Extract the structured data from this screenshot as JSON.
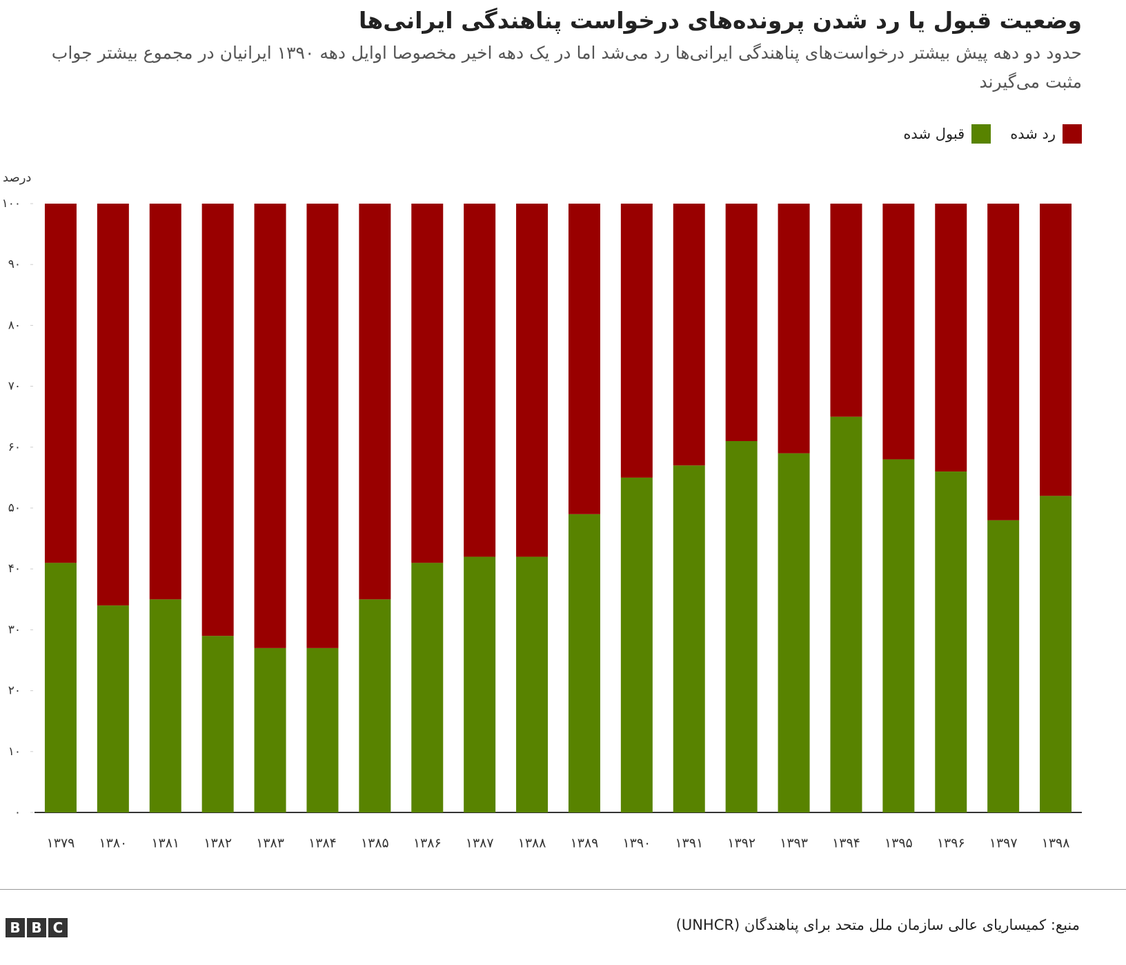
{
  "chart_data": {
    "type": "stacked_bar",
    "title": "وضعیت قبول یا رد شدن پرونده‌های درخواست پناهندگی ایرانی‌ها",
    "subtitle": "حدود دو دهه پیش بیشتر درخواست‌های پناهندگی ایرانی‌ها رد می‌شد اما در یک دهه اخیر مخصوصا اوایل دهه ۱۳۹۰ ایرانیان در مجموع بیشتر جواب مثبت می‌گیرند",
    "y_label": "درصد",
    "categories": [
      "۱۳۷۹",
      "۱۳۸۰",
      "۱۳۸۱",
      "۱۳۸۲",
      "۱۳۸۳",
      "۱۳۸۴",
      "۱۳۸۵",
      "۱۳۸۶",
      "۱۳۸۷",
      "۱۳۸۸",
      "۱۳۸۹",
      "۱۳۹۰",
      "۱۳۹۱",
      "۱۳۹۲",
      "۱۳۹۳",
      "۱۳۹۴",
      "۱۳۹۵",
      "۱۳۹۶",
      "۱۳۹۷",
      "۱۳۹۸"
    ],
    "series": [
      {
        "name": "قبول شده",
        "color": "#588300",
        "values": [
          41,
          34,
          35,
          29,
          27,
          27,
          35,
          41,
          42,
          42,
          49,
          55,
          57,
          61,
          59,
          65,
          58,
          56,
          48,
          52
        ]
      },
      {
        "name": "رد شده",
        "color": "#990000",
        "values": [
          59,
          66,
          65,
          71,
          73,
          73,
          65,
          59,
          58,
          58,
          51,
          45,
          43,
          39,
          41,
          35,
          42,
          44,
          52,
          48
        ]
      }
    ],
    "ylim": [
      0,
      100
    ],
    "yticks": [
      {
        "value": 0,
        "label": "۰"
      },
      {
        "value": 10,
        "label": "۱۰"
      },
      {
        "value": 20,
        "label": "۲۰"
      },
      {
        "value": 30,
        "label": "۳۰"
      },
      {
        "value": 40,
        "label": "۴۰"
      },
      {
        "value": 50,
        "label": "۵۰"
      },
      {
        "value": 60,
        "label": "۶۰"
      },
      {
        "value": 70,
        "label": "۷۰"
      },
      {
        "value": 80,
        "label": "۸۰"
      },
      {
        "value": 90,
        "label": "۹۰"
      },
      {
        "value": 100,
        "label": "۱۰۰"
      }
    ],
    "grid": false,
    "source": "منبع: کمیساریای عالی سازمان ملل متحد برای پناهندگان (UNHCR)",
    "logo": "BBC"
  }
}
